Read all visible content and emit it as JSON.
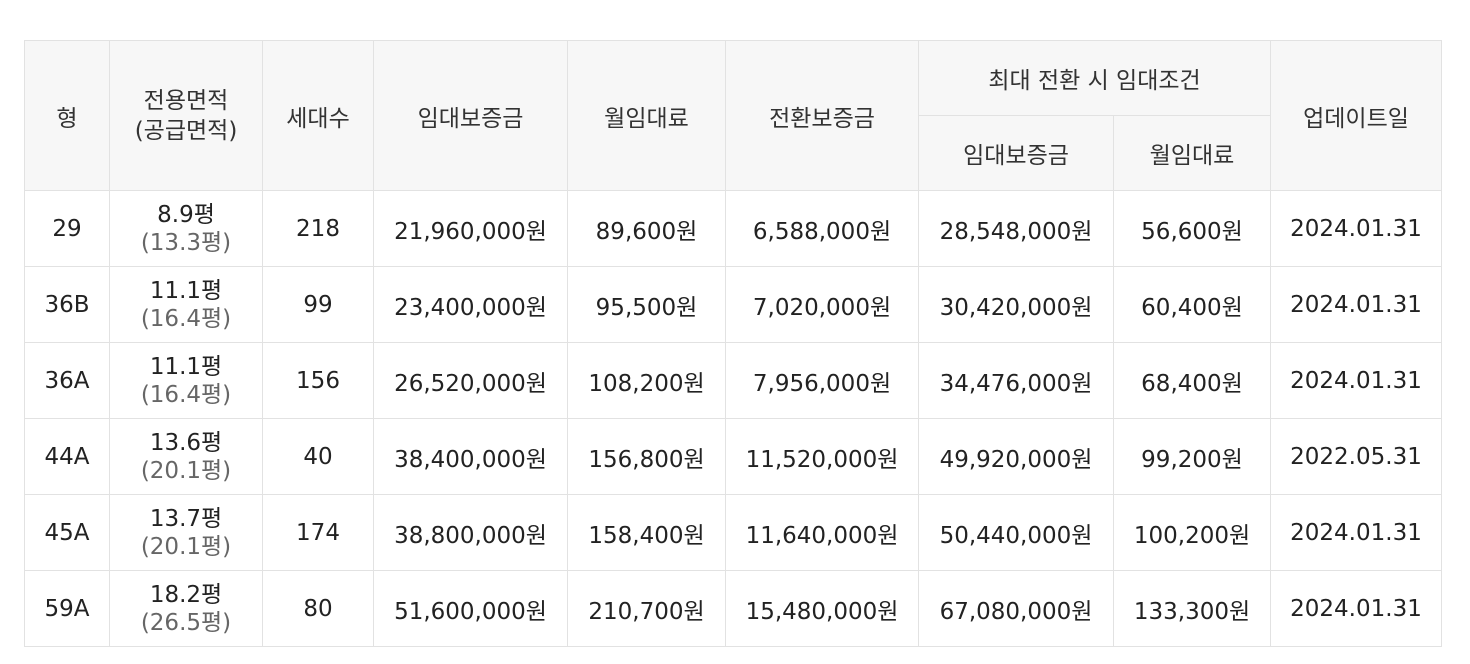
{
  "table": {
    "headers": {
      "type": "형",
      "area_line1": "전용면적",
      "area_line2": "(공급면적)",
      "households": "세대수",
      "deposit": "임대보증금",
      "monthly": "월임대료",
      "conversion": "전환보증금",
      "max_group": "최대 전환 시 임대조건",
      "max_deposit": "임대보증금",
      "max_monthly": "월임대료",
      "updated": "업데이트일"
    },
    "rows": [
      {
        "type": "29",
        "area": "8.9평",
        "supply": "(13.3평)",
        "households": "218",
        "deposit": "21,960,000원",
        "monthly": "89,600원",
        "conversion": "6,588,000원",
        "max_deposit": "28,548,000원",
        "max_monthly": "56,600원",
        "updated": "2024.01.31"
      },
      {
        "type": "36B",
        "area": "11.1평",
        "supply": "(16.4평)",
        "households": "99",
        "deposit": "23,400,000원",
        "monthly": "95,500원",
        "conversion": "7,020,000원",
        "max_deposit": "30,420,000원",
        "max_monthly": "60,400원",
        "updated": "2024.01.31"
      },
      {
        "type": "36A",
        "area": "11.1평",
        "supply": "(16.4평)",
        "households": "156",
        "deposit": "26,520,000원",
        "monthly": "108,200원",
        "conversion": "7,956,000원",
        "max_deposit": "34,476,000원",
        "max_monthly": "68,400원",
        "updated": "2024.01.31"
      },
      {
        "type": "44A",
        "area": "13.6평",
        "supply": "(20.1평)",
        "households": "40",
        "deposit": "38,400,000원",
        "monthly": "156,800원",
        "conversion": "11,520,000원",
        "max_deposit": "49,920,000원",
        "max_monthly": "99,200원",
        "updated": "2022.05.31"
      },
      {
        "type": "45A",
        "area": "13.7평",
        "supply": "(20.1평)",
        "households": "174",
        "deposit": "38,800,000원",
        "monthly": "158,400원",
        "conversion": "11,640,000원",
        "max_deposit": "50,440,000원",
        "max_monthly": "100,200원",
        "updated": "2024.01.31"
      },
      {
        "type": "59A",
        "area": "18.2평",
        "supply": "(26.5평)",
        "households": "80",
        "deposit": "51,600,000원",
        "monthly": "210,700원",
        "conversion": "15,480,000원",
        "max_deposit": "67,080,000원",
        "max_monthly": "133,300원",
        "updated": "2024.01.31"
      }
    ]
  }
}
